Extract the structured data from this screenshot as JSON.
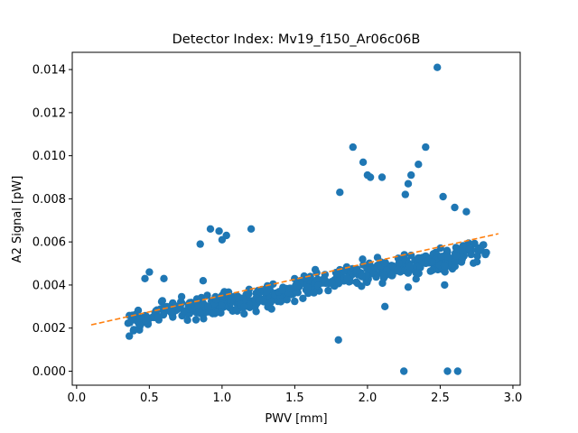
{
  "chart_data": {
    "type": "scatter",
    "title": "Detector Index: Mv19_f150_Ar06c06B",
    "xlabel": "PWV [mm]",
    "ylabel": "A2 Signal [pW]",
    "xlim": [
      -0.03,
      3.05
    ],
    "ylim": [
      -0.00065,
      0.0148
    ],
    "x_ticks": [
      0.0,
      0.5,
      1.0,
      1.5,
      2.0,
      2.5,
      3.0
    ],
    "x_tick_labels": [
      "0.0",
      "0.5",
      "1.0",
      "1.5",
      "2.0",
      "2.5",
      "3.0"
    ],
    "y_ticks": [
      0.0,
      0.002,
      0.004,
      0.006,
      0.008,
      0.01,
      0.012,
      0.014
    ],
    "y_tick_labels": [
      "0.000",
      "0.002",
      "0.004",
      "0.006",
      "0.008",
      "0.010",
      "0.012",
      "0.014"
    ],
    "grid": false,
    "colors": {
      "points": "#1f77b4",
      "fit": "#ff7f0e"
    },
    "fit_line": {
      "style": "dashed",
      "x": [
        0.1,
        2.9
      ],
      "y": [
        0.00215,
        0.00638
      ]
    },
    "outliers": {
      "x": [
        0.47,
        0.5,
        0.6,
        0.85,
        0.87,
        0.92,
        0.98,
        1.0,
        1.03,
        1.2,
        1.8,
        1.81,
        1.9,
        1.97,
        2.0,
        2.02,
        2.1,
        2.12,
        2.26,
        2.28,
        2.3,
        2.35,
        2.4,
        2.48,
        2.52,
        2.53,
        2.6,
        2.68,
        2.25,
        2.55,
        2.62,
        2.28
      ],
      "y": [
        0.0043,
        0.0046,
        0.0043,
        0.0059,
        0.0042,
        0.0066,
        0.0065,
        0.0061,
        0.0063,
        0.0066,
        0.00145,
        0.0083,
        0.0104,
        0.0097,
        0.0091,
        0.009,
        0.009,
        0.003,
        0.0082,
        0.0087,
        0.0091,
        0.0096,
        0.0104,
        0.0141,
        0.0081,
        0.004,
        0.0076,
        0.0074,
        0.0,
        0.0,
        0.0,
        0.0039
      ]
    },
    "trend_band": {
      "n": 520,
      "x_start": 0.35,
      "x_end": 2.82,
      "points": [
        [
          0.35,
          0.0021
        ],
        [
          0.7,
          0.0029
        ],
        [
          1.0,
          0.0031
        ],
        [
          1.4,
          0.0036
        ],
        [
          1.8,
          0.0043
        ],
        [
          2.2,
          0.0048
        ],
        [
          2.5,
          0.0052
        ],
        [
          2.82,
          0.0056
        ]
      ],
      "spread": 0.00032,
      "seed": 19
    }
  }
}
